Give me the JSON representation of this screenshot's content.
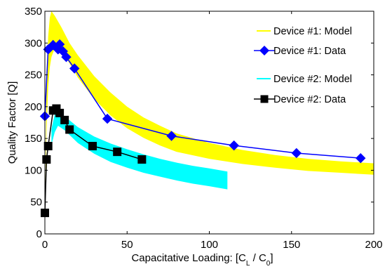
{
  "chart_data": {
    "type": "line",
    "xlabel_main": "Capacitative Loading: [C",
    "xlabel_sub1": "L",
    "xlabel_mid": " / C",
    "xlabel_sub2": "0",
    "xlabel_end": "]",
    "ylabel": "Quality Factor [Q]",
    "xlim": [
      0,
      200
    ],
    "ylim": [
      0,
      350
    ],
    "xticks": [
      0,
      50,
      100,
      150,
      200
    ],
    "yticks": [
      0,
      50,
      100,
      150,
      200,
      250,
      300,
      350
    ],
    "grid": false,
    "legend_position": "top-right",
    "series": [
      {
        "name": "Device #1: Model",
        "kind": "band",
        "color": "#ffff00",
        "upper": [
          [
            0,
            0
          ],
          [
            1,
            240
          ],
          [
            2,
            310
          ],
          [
            3,
            340
          ],
          [
            4,
            350
          ],
          [
            6,
            343
          ],
          [
            10,
            325
          ],
          [
            15,
            300
          ],
          [
            20,
            281
          ],
          [
            30,
            248
          ],
          [
            40,
            222
          ],
          [
            50,
            200
          ],
          [
            60,
            183
          ],
          [
            70,
            170
          ],
          [
            80,
            158
          ],
          [
            100,
            143
          ],
          [
            120,
            132
          ],
          [
            140,
            124
          ],
          [
            160,
            118
          ],
          [
            180,
            114
          ],
          [
            200,
            111
          ]
        ],
        "lower": [
          [
            0,
            0
          ],
          [
            1,
            160
          ],
          [
            2,
            230
          ],
          [
            3,
            262
          ],
          [
            4,
            278
          ],
          [
            6,
            292
          ],
          [
            10,
            288
          ],
          [
            15,
            268
          ],
          [
            20,
            246
          ],
          [
            30,
            212
          ],
          [
            40,
            186
          ],
          [
            50,
            166
          ],
          [
            60,
            151
          ],
          [
            70,
            139
          ],
          [
            80,
            129
          ],
          [
            100,
            118
          ],
          [
            120,
            110
          ],
          [
            140,
            104
          ],
          [
            160,
            99
          ],
          [
            180,
            96
          ],
          [
            200,
            93
          ]
        ]
      },
      {
        "name": "Device #1: Data",
        "kind": "line",
        "color": "#0000ff",
        "marker": "diamond",
        "x": [
          0,
          2,
          5,
          8,
          9,
          11,
          13,
          18,
          38,
          77,
          115,
          153,
          192
        ],
        "y": [
          185,
          290,
          297,
          290,
          298,
          287,
          278,
          260,
          181,
          154,
          139,
          127,
          119
        ]
      },
      {
        "name": "Device #2: Model",
        "kind": "band",
        "color": "#00ffff",
        "upper": [
          [
            4,
            165
          ],
          [
            6,
            188
          ],
          [
            8,
            192
          ],
          [
            12,
            185
          ],
          [
            20,
            168
          ],
          [
            30,
            153
          ],
          [
            40,
            142
          ],
          [
            50,
            133
          ],
          [
            60,
            125
          ],
          [
            70,
            118
          ],
          [
            80,
            112
          ],
          [
            90,
            107
          ],
          [
            100,
            103
          ],
          [
            111,
            98
          ]
        ],
        "lower": [
          [
            4,
            140
          ],
          [
            6,
            160
          ],
          [
            8,
            170
          ],
          [
            12,
            163
          ],
          [
            20,
            143
          ],
          [
            30,
            126
          ],
          [
            40,
            113
          ],
          [
            50,
            104
          ],
          [
            60,
            96
          ],
          [
            70,
            90
          ],
          [
            80,
            84
          ],
          [
            90,
            79
          ],
          [
            100,
            75
          ],
          [
            111,
            70
          ]
        ]
      },
      {
        "name": "Device #2: Data",
        "kind": "line",
        "color": "#000000",
        "marker": "square",
        "x": [
          0,
          1,
          2,
          5,
          7,
          9,
          12,
          15,
          29,
          44,
          59
        ],
        "y": [
          33,
          117,
          138,
          194,
          197,
          190,
          179,
          164,
          138,
          129,
          117
        ]
      }
    ]
  }
}
